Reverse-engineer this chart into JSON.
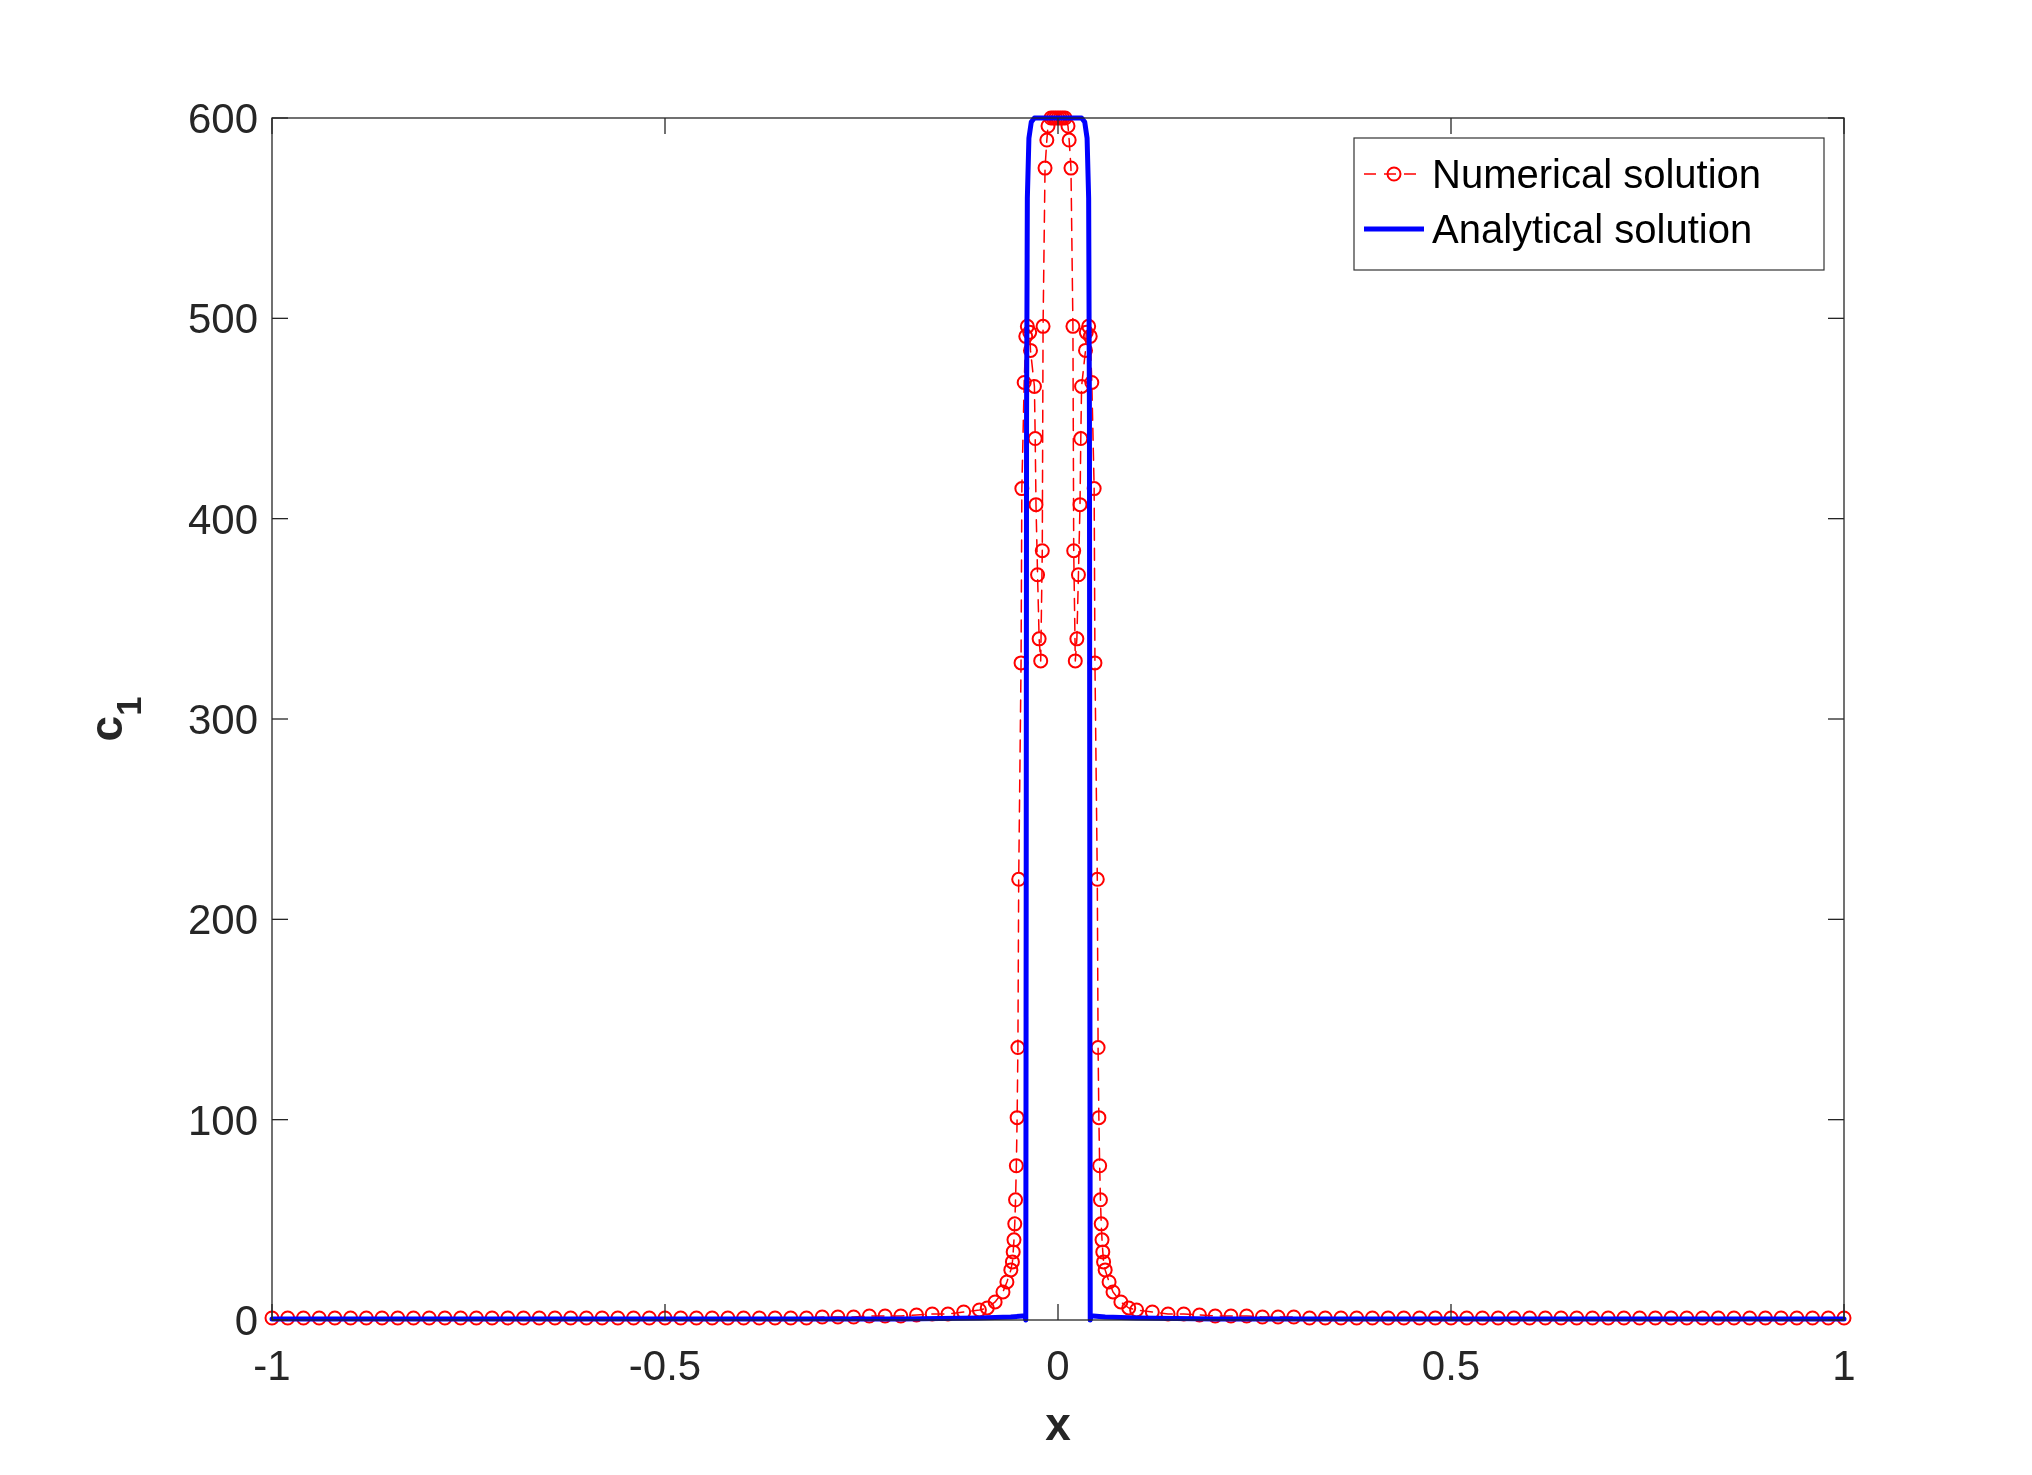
{
  "chart_data": {
    "type": "line",
    "xlabel": "x",
    "ylabel": "c$_{1}$",
    "xlim": [
      -1,
      1
    ],
    "ylim": [
      0,
      600
    ],
    "xticks": [
      -1,
      -0.5,
      0,
      0.5,
      1
    ],
    "yticks": [
      0,
      100,
      200,
      300,
      400,
      500,
      600
    ],
    "grid": false,
    "legend": "top right",
    "series": [
      {
        "name": "Numerical solution",
        "color": "#ff0000",
        "marker": "circle",
        "line_style": "dashed",
        "x": [
          -1,
          -0.98,
          -0.96,
          -0.94,
          -0.92,
          -0.9,
          -0.88,
          -0.86,
          -0.84,
          -0.82,
          -0.8,
          -0.78,
          -0.76,
          -0.74,
          -0.72,
          -0.7,
          -0.68,
          -0.66,
          -0.64,
          -0.62,
          -0.6,
          -0.58,
          -0.56,
          -0.54,
          -0.52,
          -0.5,
          -0.48,
          -0.46,
          -0.44,
          -0.42,
          -0.4,
          -0.38,
          -0.36,
          -0.34,
          -0.32,
          -0.3,
          -0.28,
          -0.26,
          -0.24,
          -0.22,
          -0.2,
          -0.18,
          -0.16,
          -0.14,
          -0.12,
          -0.1,
          -0.09,
          -0.08,
          -0.07,
          -0.065,
          -0.06,
          -0.058,
          -0.057,
          -0.056,
          -0.055,
          -0.054,
          -0.053,
          -0.052,
          -0.051,
          -0.05,
          -0.047,
          -0.046,
          -0.043,
          -0.041,
          -0.039,
          -0.036,
          -0.035,
          -0.03,
          -0.029,
          -0.028,
          -0.026,
          -0.024,
          -0.022,
          -0.02,
          -0.019,
          -0.0165,
          -0.0142,
          -0.0127,
          -0.009,
          -0.006,
          -0.003,
          0,
          0.003,
          0.006,
          0.009,
          0.0127,
          0.0142,
          0.0165,
          0.019,
          0.02,
          0.022,
          0.024,
          0.026,
          0.028,
          0.029,
          0.03,
          0.035,
          0.036,
          0.039,
          0.041,
          0.043,
          0.046,
          0.047,
          0.05,
          0.051,
          0.052,
          0.053,
          0.054,
          0.055,
          0.056,
          0.057,
          0.058,
          0.06,
          0.065,
          0.07,
          0.08,
          0.09,
          0.1,
          0.12,
          0.14,
          0.16,
          0.18,
          0.2,
          0.22,
          0.24,
          0.26,
          0.28,
          0.3,
          0.32,
          0.34,
          0.36,
          0.38,
          0.4,
          0.42,
          0.44,
          0.46,
          0.48,
          0.5,
          0.52,
          0.54,
          0.56,
          0.58,
          0.6,
          0.62,
          0.64,
          0.66,
          0.68,
          0.7,
          0.72,
          0.74,
          0.76,
          0.78,
          0.8,
          0.82,
          0.84,
          0.86,
          0.88,
          0.9,
          0.92,
          0.94,
          0.96,
          0.98,
          1
        ],
        "values": [
          1,
          1,
          1,
          1,
          1,
          1,
          1,
          1,
          1,
          1,
          1,
          1,
          1,
          1,
          1,
          1,
          1,
          1,
          1,
          1,
          1,
          1,
          1,
          1,
          1,
          1,
          1,
          1,
          1,
          1,
          1,
          1,
          1,
          1,
          1,
          1.5,
          1.5,
          1.5,
          2,
          2,
          2,
          2.5,
          3,
          3,
          4,
          5,
          6,
          9,
          14,
          19,
          25,
          29,
          34,
          40,
          48,
          60,
          77,
          101,
          136,
          220,
          328,
          415,
          468,
          491,
          496,
          493,
          484,
          466,
          440,
          407,
          372,
          340,
          329,
          384,
          496,
          575,
          589,
          596,
          600,
          600,
          600,
          600,
          600,
          600,
          600,
          596,
          589,
          575,
          496,
          384,
          329,
          340,
          372,
          407,
          440,
          466,
          484,
          493,
          496,
          491,
          468,
          415,
          328,
          220,
          136,
          101,
          77,
          60,
          48,
          40,
          34,
          29,
          25,
          19,
          14,
          9,
          6,
          5,
          4,
          3,
          3,
          2.5,
          2,
          2,
          2,
          1.5,
          1.5,
          1.5,
          1,
          1,
          1,
          1,
          1,
          1,
          1,
          1,
          1,
          1,
          1,
          1,
          1,
          1,
          1,
          1,
          1,
          1,
          1,
          1,
          1,
          1,
          1,
          1,
          1,
          1,
          1,
          1,
          1,
          1,
          1,
          1,
          1,
          1,
          1
        ]
      },
      {
        "name": "Analytical solution",
        "color": "#0000ff",
        "marker": "none",
        "line_style": "solid",
        "x": [
          -1,
          -0.5,
          -0.2,
          -0.1,
          -0.06,
          -0.045,
          -0.042,
          -0.041,
          -0.0405,
          -0.04,
          -0.039,
          -0.037,
          -0.034,
          -0.03,
          0,
          0.03,
          0.034,
          0.037,
          0.039,
          0.04,
          0.0405,
          0.041,
          0.042,
          0.045,
          0.06,
          0.1,
          0.2,
          0.5,
          1
        ],
        "values": [
          0.5,
          0.5,
          0.5,
          1,
          1.5,
          2,
          2,
          0,
          200,
          450,
          560,
          590,
          598,
          600,
          600,
          600,
          598,
          590,
          560,
          450,
          200,
          0,
          2,
          2,
          1.5,
          1,
          0.5,
          0.5,
          0.5
        ]
      }
    ]
  }
}
